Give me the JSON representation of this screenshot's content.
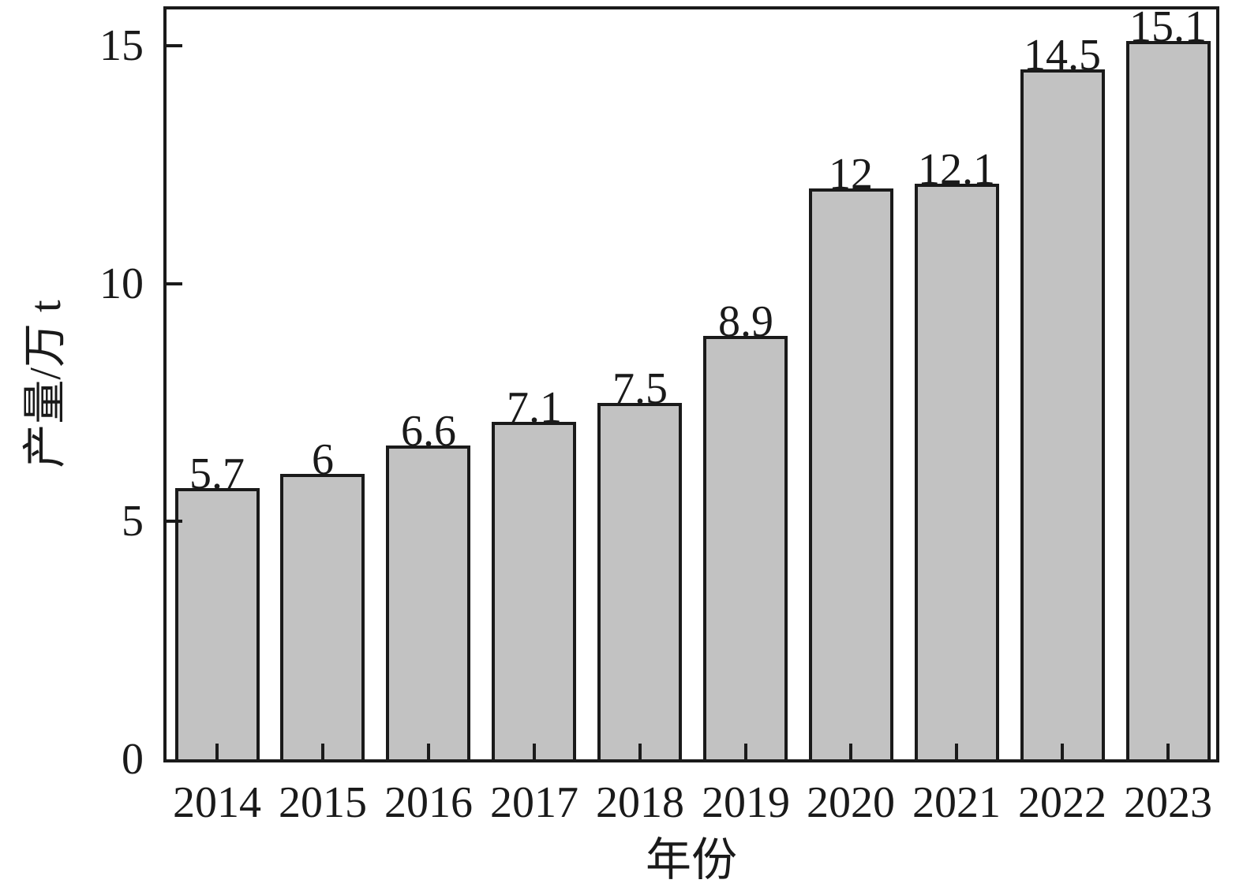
{
  "chart_data": {
    "type": "bar",
    "title": "",
    "categories": [
      "2014",
      "2015",
      "2016",
      "2017",
      "2018",
      "2019",
      "2020",
      "2021",
      "2022",
      "2023"
    ],
    "values": [
      5.7,
      6,
      6.6,
      7.1,
      7.5,
      8.9,
      12,
      12.1,
      14.5,
      15.1
    ],
    "value_labels": [
      "5.7",
      "6",
      "6.6",
      "7.1",
      "7.5",
      "8.9",
      "12",
      "12.1",
      "14.5",
      "15.1"
    ],
    "xlabel": "年份",
    "ylabel": "产量/万 t",
    "yticks": [
      0,
      5,
      10,
      15
    ],
    "ytick_labels": [
      "0",
      "5",
      "10",
      "15"
    ],
    "ylim": [
      0,
      15.9
    ],
    "grid": false,
    "legend": null,
    "bar_color": "#c2c2c2",
    "edge_color": "#1a1a1a",
    "background_color": "#ffffff",
    "tick_direction": "in"
  }
}
